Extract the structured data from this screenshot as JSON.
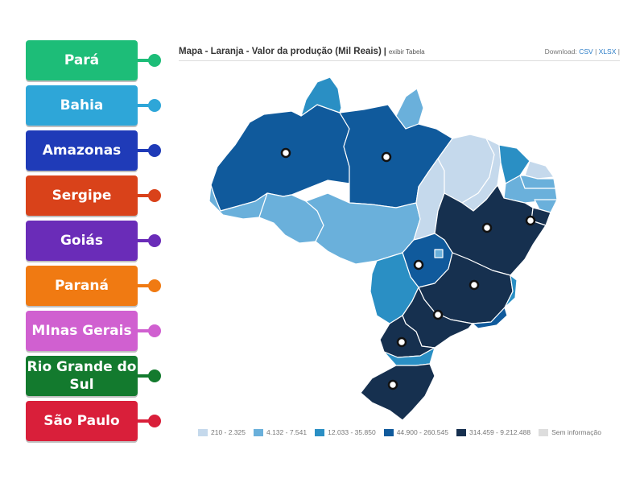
{
  "labels": [
    {
      "text": "Pará",
      "color": "#1dbd78"
    },
    {
      "text": "Bahia",
      "color": "#2ea6d8"
    },
    {
      "text": "Amazonas",
      "color": "#1f3bb8"
    },
    {
      "text": "Sergipe",
      "color": "#d9421a"
    },
    {
      "text": "Goiás",
      "color": "#6a2cb8"
    },
    {
      "text": "Paraná",
      "color": "#f07a12"
    },
    {
      "text": "MInas Gerais",
      "color": "#d060d0"
    },
    {
      "text": "Rio Grande do Sul",
      "color": "#137a2e"
    },
    {
      "text": "São Paulo",
      "color": "#d91f3a"
    }
  ],
  "map": {
    "title": "Mapa - Laranja - Valor da produção (Mil Reais)",
    "separator": "|",
    "table_link": "exibir Tabela",
    "download_label": "Download:",
    "download_csv": "CSV",
    "download_xlsx": "XLSX",
    "download_sep": "|"
  },
  "legend": [
    {
      "label": "210 - 2.325",
      "color": "#c5d9ec"
    },
    {
      "label": "4.132 - 7.541",
      "color": "#6ab0db"
    },
    {
      "label": "12.033 - 35.850",
      "color": "#2a8fc4"
    },
    {
      "label": "44.900 - 260.545",
      "color": "#105a9c"
    },
    {
      "label": "314.459 - 9.212.488",
      "color": "#16304f"
    },
    {
      "label": "Sem informação",
      "color": "#dddddd"
    }
  ]
}
